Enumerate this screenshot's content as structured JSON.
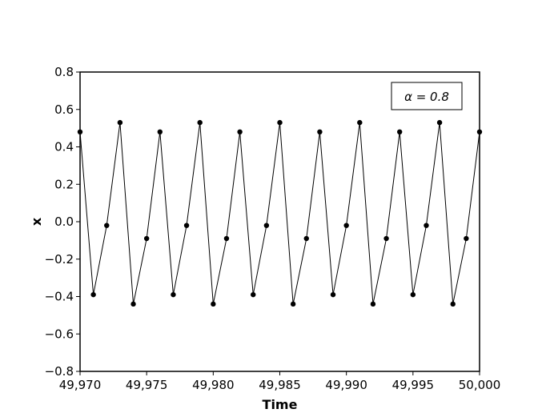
{
  "chart_data": {
    "type": "line",
    "xlabel": "Time",
    "ylabel": "x",
    "xlim": [
      49970,
      50000
    ],
    "ylim": [
      -0.8,
      0.8
    ],
    "x_ticks": [
      49970,
      49975,
      49980,
      49985,
      49990,
      49995,
      50000
    ],
    "x_tick_labels": [
      "49,970",
      "49,975",
      "49,980",
      "49,985",
      "49,990",
      "49,995",
      "50,000"
    ],
    "y_ticks": [
      0.8,
      0.6,
      0.4,
      0.2,
      0.0,
      -0.2,
      -0.4,
      -0.6,
      -0.8
    ],
    "y_tick_labels": [
      "0.8",
      "0.6",
      "0.4",
      "0.2",
      "0.0",
      "−0.2",
      "−0.4",
      "−0.6",
      "−0.8"
    ],
    "grid": false,
    "legend": {
      "text": "α = 0.8",
      "placement": "top-right"
    },
    "series": [
      {
        "color": "#000000",
        "marker": "circle",
        "x": [
          49970,
          49971,
          49972,
          49973,
          49974,
          49975,
          49976,
          49977,
          49978,
          49979,
          49980,
          49981,
          49982,
          49983,
          49984,
          49985,
          49986,
          49987,
          49988,
          49989,
          49990,
          49991,
          49992,
          49993,
          49994,
          49995,
          49996,
          49997,
          49998,
          49999,
          50000
        ],
        "y": [
          0.48,
          -0.39,
          -0.02,
          0.53,
          -0.44,
          -0.09,
          0.48,
          -0.39,
          -0.02,
          0.53,
          -0.44,
          -0.09,
          0.48,
          -0.39,
          -0.02,
          0.53,
          -0.44,
          -0.09,
          0.48,
          -0.39,
          -0.02,
          0.53,
          -0.44,
          -0.09,
          0.48,
          -0.39,
          -0.02,
          0.53,
          -0.44,
          -0.09,
          0.48
        ]
      }
    ]
  }
}
